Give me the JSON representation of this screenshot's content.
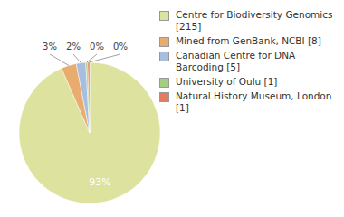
{
  "chart_data": {
    "type": "pie",
    "categories": [
      "Centre for Biodiversity Genomics [215]",
      "Mined from GenBank, NCBI [8]",
      "Canadian Centre for DNA Barcoding [5]",
      "University of Oulu [1]",
      "Natural History Museum, London [1]"
    ],
    "values": [
      215,
      8,
      5,
      1,
      1
    ],
    "value_labels": [
      "93%",
      "3%",
      "2%",
      "0%",
      "0%"
    ],
    "colors": [
      "#dde39e",
      "#e8ad6e",
      "#a7bedf",
      "#a5cd7f",
      "#e07d62"
    ],
    "data_labels": true,
    "legend": "right"
  }
}
